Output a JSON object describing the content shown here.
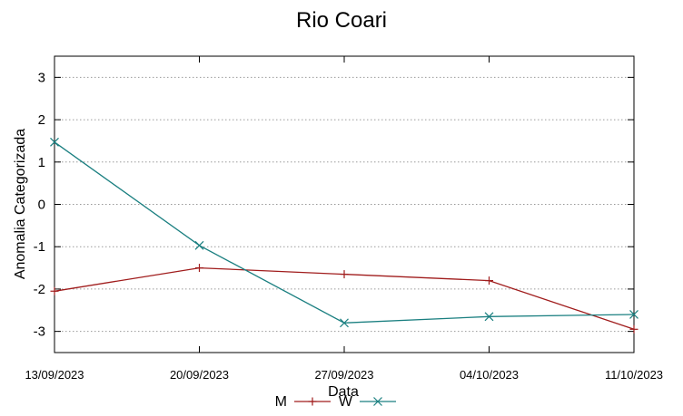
{
  "chart_data": {
    "type": "line",
    "title": "Rio Coari",
    "xlabel": "Data",
    "ylabel": "Anomalia Categorizada",
    "categories": [
      "13/09/2023",
      "20/09/2023",
      "27/09/2023",
      "04/10/2023",
      "11/10/2023"
    ],
    "ylim": [
      -3.5,
      3.5
    ],
    "yticks": [
      "3",
      "2",
      "1",
      "0",
      "-1",
      "-2",
      "-3"
    ],
    "grid": "horizontal dotted",
    "legend": "bottom-center",
    "series": [
      {
        "name": "M",
        "color": "#a01c1c",
        "marker": "plus",
        "values": [
          -2.05,
          -1.5,
          -1.65,
          -1.8,
          -2.95
        ]
      },
      {
        "name": "W",
        "color": "#1a7f80",
        "marker": "cross",
        "values": [
          1.47,
          -0.97,
          -2.8,
          -2.65,
          -2.6
        ]
      }
    ]
  }
}
